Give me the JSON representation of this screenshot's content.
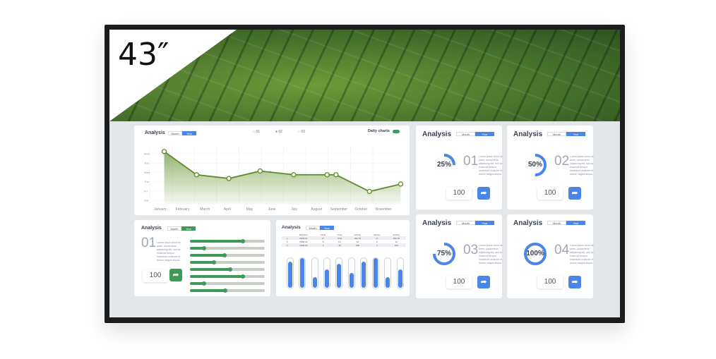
{
  "tv": {
    "size_label": "43″"
  },
  "line_card": {
    "title": "Analysis",
    "toggle": [
      "Month",
      "Year"
    ],
    "toggle_active": 1,
    "radios": [
      "01",
      "02",
      "03"
    ],
    "radio_selected": 1,
    "daily_label": "Daily charts",
    "daily_on": true,
    "chart_data": {
      "type": "area",
      "categories": [
        "January",
        "February",
        "March",
        "April",
        "May",
        "June",
        "July",
        "August",
        "September",
        "October",
        "November"
      ],
      "y_labels": [
        "Mon",
        "Tue",
        "Wed",
        "Thu",
        "Fri",
        "Sat"
      ],
      "points": [
        {
          "x": -0.3,
          "y": 5.7
        },
        {
          "x": 1.15,
          "y": 3.2
        },
        {
          "x": 2.6,
          "y": 2.8
        },
        {
          "x": 4.0,
          "y": 3.6
        },
        {
          "x": 5.5,
          "y": 3.2
        },
        {
          "x": 7.0,
          "y": 3.2
        },
        {
          "x": 7.4,
          "y": 3.2
        },
        {
          "x": 8.9,
          "y": 1.4
        },
        {
          "x": 10.3,
          "y": 2.2
        }
      ],
      "ylim": [
        0,
        6
      ],
      "grid": true,
      "color": "#5e8a2a"
    }
  },
  "rings": [
    {
      "title": "Analysis",
      "toggle": [
        "Month",
        "Year"
      ],
      "percent": 25,
      "label": "25%",
      "num": "01",
      "text": "Lorem ipsum dolor sit amet, consectetur adipiscing elit, sed do eiusmod tempor incididunt ut labore et dolore magna aliqua.",
      "value": "100"
    },
    {
      "title": "Analysis",
      "toggle": [
        "Month",
        "Year"
      ],
      "percent": 50,
      "label": "50%",
      "num": "02",
      "text": "Lorem ipsum dolor sit amet, consectetur adipiscing elit, sed do eiusmod tempor incididunt ut labore et dolore magna aliqua.",
      "value": "100"
    },
    {
      "title": "Analysis",
      "toggle": [
        "Month",
        "Year"
      ],
      "percent": 75,
      "label": "75%",
      "num": "03",
      "text": "Lorem ipsum dolor sit amet, consectetur adipiscing elit, sed do eiusmod tempor incididunt ut labore et dolore magna aliqua.",
      "value": "100"
    },
    {
      "title": "Analysis",
      "toggle": [
        "Month",
        "Year"
      ],
      "percent": 100,
      "label": "100%",
      "num": "04",
      "text": "Lorem ipsum dolor sit amet, consectetur adipiscing elit, sed do eiusmod tempor incididunt ut labore et dolore magna aliqua.",
      "value": "100"
    }
  ],
  "bars_card": {
    "title": "Analysis",
    "toggle": [
      "Month",
      "Year"
    ],
    "num": "01",
    "text": "Lorem ipsum dolor sit amet, consectetur adipiscing elit, sed do eiusmod tempor incididunt ut labore et dolore magna aliqua.",
    "value": "100",
    "progress": [
      0.72,
      0.2,
      0.47,
      0.33,
      0.55,
      0.72,
      0.2,
      0.48
    ]
  },
  "table_card": {
    "title": "Analysis",
    "toggle": [
      "Month",
      "Year"
    ],
    "headers": [
      "",
      "Direction",
      "Circle",
      "Time",
      "Activity",
      "Activity",
      "Activity"
    ],
    "rows": [
      [
        "1",
        "ITEM 01",
        "17",
        "8:54",
        "456.78",
        "17",
        "456.78"
      ],
      [
        "2",
        "ITEM 02",
        "8",
        "9:1",
        "32",
        "8",
        "32"
      ],
      [
        "3",
        "ITEM 03",
        "3",
        "36",
        "198",
        "3",
        "198"
      ]
    ],
    "levels": [
      0.85,
      0.98,
      0.35,
      0.6,
      0.8,
      0.5,
      0.85,
      0.98,
      0.35,
      0.6
    ]
  }
}
